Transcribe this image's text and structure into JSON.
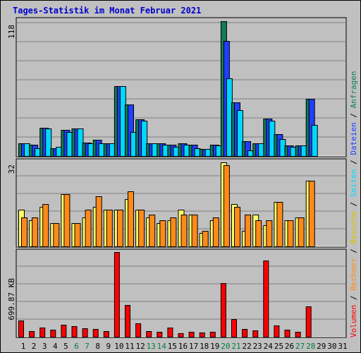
{
  "title": "Tages-Statistik im Monat Februar 2021",
  "colors": {
    "anfragen": "#0e7a5a",
    "dateien": "#1e40ff",
    "seiten": "#00d8ff",
    "besuche": "#ffff66",
    "rechner": "#ff8a1a",
    "volumen": "#ff0000",
    "weekend": "#008040",
    "weekday": "#000000"
  },
  "chart_data": [
    {
      "type": "bar",
      "ylabel": "118",
      "ymax": 118,
      "days": [
        1,
        2,
        3,
        4,
        5,
        6,
        7,
        8,
        9,
        10,
        11,
        12,
        13,
        14,
        15,
        16,
        17,
        18,
        19,
        20,
        21,
        22,
        23,
        24,
        25,
        26,
        27,
        28,
        29,
        30,
        31
      ],
      "series": [
        {
          "name": "Anfragen",
          "values": [
            11,
            10,
            25,
            7,
            23,
            24,
            12,
            14,
            11,
            61,
            45,
            32,
            11,
            11,
            10,
            11,
            10,
            6,
            10,
            118,
            47,
            13,
            11,
            33,
            19,
            9,
            9,
            50,
            0,
            0,
            0
          ]
        },
        {
          "name": "Dateien",
          "values": [
            11,
            10,
            25,
            7,
            23,
            24,
            12,
            14,
            11,
            61,
            45,
            32,
            11,
            11,
            10,
            11,
            10,
            6,
            10,
            101,
            47,
            13,
            11,
            33,
            19,
            9,
            9,
            50,
            0,
            0,
            0
          ]
        },
        {
          "name": "Seiten",
          "values": [
            11,
            7,
            24,
            8,
            21,
            24,
            11,
            11,
            11,
            61,
            21,
            31,
            11,
            10,
            8,
            10,
            7,
            6,
            9,
            68,
            40,
            5,
            11,
            31,
            15,
            8,
            9,
            27,
            0,
            0,
            0
          ]
        }
      ]
    },
    {
      "type": "bar",
      "ylabel": "32",
      "ymax": 32,
      "days": [
        1,
        2,
        3,
        4,
        5,
        6,
        7,
        8,
        9,
        10,
        11,
        12,
        13,
        14,
        15,
        16,
        17,
        18,
        19,
        20,
        21,
        22,
        23,
        24,
        25,
        26,
        27,
        28,
        29,
        30,
        31
      ],
      "series": [
        {
          "name": "Besuche",
          "values": [
            14,
            10,
            15,
            9,
            20,
            9,
            11,
            15,
            14,
            14,
            18,
            14,
            11,
            9,
            10,
            14,
            12,
            5,
            10,
            32,
            16,
            6,
            12,
            8,
            17,
            10,
            11,
            25,
            0,
            0,
            0
          ]
        },
        {
          "name": "Rechner",
          "values": [
            11,
            11,
            16,
            9,
            20,
            9,
            14,
            19,
            14,
            14,
            21,
            14,
            12,
            10,
            11,
            12,
            12,
            6,
            11,
            31,
            15,
            12,
            10,
            10,
            17,
            10,
            11,
            25,
            0,
            0,
            0
          ]
        }
      ]
    },
    {
      "type": "bar",
      "ylabel": "699.87 KB",
      "ymax": 699.87,
      "days": [
        1,
        2,
        3,
        4,
        5,
        6,
        7,
        8,
        9,
        10,
        11,
        12,
        13,
        14,
        15,
        16,
        17,
        18,
        19,
        20,
        21,
        22,
        23,
        24,
        25,
        26,
        27,
        28,
        29,
        30,
        31
      ],
      "series": [
        {
          "name": "Volumen",
          "values": [
            132,
            45,
            75,
            60,
            100,
            90,
            70,
            65,
            48,
            700,
            260,
            112,
            45,
            43,
            78,
            30,
            40,
            35,
            43,
            445,
            145,
            65,
            55,
            630,
            95,
            60,
            43,
            250,
            0,
            0,
            0
          ]
        }
      ]
    }
  ],
  "legend_labels": [
    "Anfragen",
    "Dateien",
    "Seiten",
    "Besuche",
    "Rechner",
    "Volumen"
  ],
  "weekend_days": [
    6,
    7,
    13,
    14,
    20,
    21,
    27,
    28
  ]
}
